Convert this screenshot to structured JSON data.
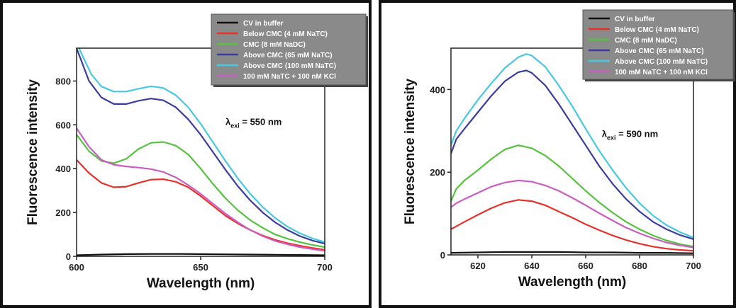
{
  "chart_data": [
    {
      "type": "line",
      "title": "",
      "xlabel": "Wavelength (nm)",
      "ylabel": "Fluorescence intensity",
      "xlim": [
        600,
        700
      ],
      "ylim": [
        0,
        950
      ],
      "xticks": [
        600,
        650,
        700
      ],
      "yticks": [
        0,
        200,
        400,
        600,
        800
      ],
      "grid": false,
      "legend_position": "top-right",
      "annotation": {
        "prefix": "λ",
        "sub": "exi",
        "suffix": " = 550 nm",
        "x": 660,
        "y": 600
      },
      "series": [
        {
          "name": "CV in buffer",
          "color": "#111111",
          "points": [
            [
              600,
              5
            ],
            [
              610,
              8
            ],
            [
              620,
              10
            ],
            [
              630,
              11
            ],
            [
              640,
              11
            ],
            [
              650,
              10
            ],
            [
              660,
              9
            ],
            [
              670,
              8
            ],
            [
              680,
              7
            ],
            [
              690,
              6
            ],
            [
              700,
              5
            ]
          ]
        },
        {
          "name": "Below CMC (4 mM NaTC)",
          "color": "#e8302a",
          "points": [
            [
              600,
              440
            ],
            [
              605,
              380
            ],
            [
              610,
              335
            ],
            [
              615,
              315
            ],
            [
              620,
              318
            ],
            [
              625,
              335
            ],
            [
              630,
              350
            ],
            [
              635,
              352
            ],
            [
              640,
              340
            ],
            [
              645,
              315
            ],
            [
              650,
              275
            ],
            [
              655,
              230
            ],
            [
              660,
              185
            ],
            [
              665,
              150
            ],
            [
              670,
              120
            ],
            [
              675,
              95
            ],
            [
              680,
              75
            ],
            [
              685,
              60
            ],
            [
              690,
              48
            ],
            [
              695,
              38
            ],
            [
              700,
              30
            ]
          ]
        },
        {
          "name": "CMC (8 mM NaDC)",
          "color": "#55c23d",
          "points": [
            [
              600,
              555
            ],
            [
              605,
              480
            ],
            [
              610,
              435
            ],
            [
              615,
              425
            ],
            [
              620,
              445
            ],
            [
              625,
              490
            ],
            [
              630,
              518
            ],
            [
              635,
              522
            ],
            [
              640,
              505
            ],
            [
              645,
              465
            ],
            [
              650,
              400
            ],
            [
              655,
              330
            ],
            [
              660,
              265
            ],
            [
              665,
              210
            ],
            [
              670,
              165
            ],
            [
              675,
              130
            ],
            [
              680,
              100
            ],
            [
              685,
              80
            ],
            [
              690,
              65
            ],
            [
              695,
              52
            ],
            [
              700,
              42
            ]
          ]
        },
        {
          "name": "Above CMC (65 mM NaTC)",
          "color": "#3c3c9e",
          "points": [
            [
              600,
              950
            ],
            [
              605,
              800
            ],
            [
              610,
              725
            ],
            [
              615,
              695
            ],
            [
              620,
              695
            ],
            [
              625,
              710
            ],
            [
              630,
              720
            ],
            [
              635,
              712
            ],
            [
              640,
              680
            ],
            [
              645,
              625
            ],
            [
              650,
              555
            ],
            [
              655,
              475
            ],
            [
              660,
              395
            ],
            [
              665,
              320
            ],
            [
              670,
              255
            ],
            [
              675,
              200
            ],
            [
              680,
              155
            ],
            [
              685,
              120
            ],
            [
              690,
              92
            ],
            [
              695,
              72
            ],
            [
              700,
              58
            ]
          ]
        },
        {
          "name": "Above CMC (100 mM NaTC)",
          "color": "#46c8e0",
          "points": [
            [
              601,
              950
            ],
            [
              603,
              900
            ],
            [
              606,
              830
            ],
            [
              610,
              775
            ],
            [
              615,
              752
            ],
            [
              620,
              752
            ],
            [
              625,
              765
            ],
            [
              630,
              776
            ],
            [
              635,
              768
            ],
            [
              640,
              735
            ],
            [
              645,
              680
            ],
            [
              650,
              605
            ],
            [
              655,
              520
            ],
            [
              660,
              435
            ],
            [
              665,
              355
            ],
            [
              670,
              285
            ],
            [
              675,
              225
            ],
            [
              680,
              175
            ],
            [
              685,
              135
            ],
            [
              690,
              105
            ],
            [
              695,
              82
            ],
            [
              700,
              65
            ]
          ]
        },
        {
          "name": "100 mM NaTC + 100 nM KCl",
          "color": "#c85fc0",
          "points": [
            [
              600,
              585
            ],
            [
              605,
              500
            ],
            [
              610,
              440
            ],
            [
              615,
              418
            ],
            [
              620,
              410
            ],
            [
              625,
              405
            ],
            [
              630,
              398
            ],
            [
              635,
              385
            ],
            [
              640,
              360
            ],
            [
              645,
              325
            ],
            [
              650,
              285
            ],
            [
              655,
              240
            ],
            [
              660,
              195
            ],
            [
              665,
              155
            ],
            [
              670,
              120
            ],
            [
              675,
              92
            ],
            [
              680,
              70
            ],
            [
              685,
              55
            ],
            [
              690,
              42
            ],
            [
              695,
              33
            ],
            [
              700,
              25
            ]
          ]
        }
      ]
    },
    {
      "type": "line",
      "title": "",
      "xlabel": "Wavelength (nm)",
      "ylabel": "Fluorescence intensity",
      "xlim": [
        610,
        700
      ],
      "ylim": [
        0,
        500
      ],
      "xticks": [
        620,
        640,
        660,
        680,
        700
      ],
      "yticks": [
        0,
        200,
        400
      ],
      "grid": false,
      "legend_position": "top-right",
      "annotation": {
        "prefix": "λ",
        "sub": "exi",
        "suffix": " = 590 nm",
        "x": 666,
        "y": 285
      },
      "series": [
        {
          "name": "CV in buffer",
          "color": "#111111",
          "points": [
            [
              610,
              5
            ],
            [
              620,
              6
            ],
            [
              630,
              7
            ],
            [
              640,
              7
            ],
            [
              650,
              7
            ],
            [
              660,
              6
            ],
            [
              670,
              6
            ],
            [
              680,
              5
            ],
            [
              690,
              5
            ],
            [
              700,
              4
            ]
          ]
        },
        {
          "name": "Below CMC (4 mM NaTC)",
          "color": "#e8302a",
          "points": [
            [
              610,
              62
            ],
            [
              615,
              80
            ],
            [
              620,
              97
            ],
            [
              625,
              113
            ],
            [
              630,
              126
            ],
            [
              635,
              133
            ],
            [
              640,
              130
            ],
            [
              645,
              120
            ],
            [
              650,
              105
            ],
            [
              655,
              90
            ],
            [
              660,
              74
            ],
            [
              665,
              60
            ],
            [
              670,
              47
            ],
            [
              675,
              36
            ],
            [
              680,
              27
            ],
            [
              685,
              20
            ],
            [
              690,
              15
            ],
            [
              695,
              12
            ],
            [
              700,
              10
            ]
          ]
        },
        {
          "name": "CMC (8 mM NaDC)",
          "color": "#55c23d",
          "points": [
            [
              610,
              130
            ],
            [
              612,
              160
            ],
            [
              615,
              180
            ],
            [
              620,
              205
            ],
            [
              625,
              232
            ],
            [
              630,
              255
            ],
            [
              635,
              265
            ],
            [
              640,
              258
            ],
            [
              645,
              240
            ],
            [
              650,
              215
            ],
            [
              655,
              185
            ],
            [
              660,
              155
            ],
            [
              665,
              127
            ],
            [
              670,
              102
            ],
            [
              675,
              80
            ],
            [
              680,
              62
            ],
            [
              685,
              47
            ],
            [
              690,
              35
            ],
            [
              695,
              26
            ],
            [
              700,
              20
            ]
          ]
        },
        {
          "name": "Above CMC (65 mM NaTC)",
          "color": "#3c3c9e",
          "points": [
            [
              610,
              245
            ],
            [
              612,
              280
            ],
            [
              615,
              305
            ],
            [
              620,
              345
            ],
            [
              625,
              385
            ],
            [
              630,
              420
            ],
            [
              635,
              442
            ],
            [
              638,
              446
            ],
            [
              640,
              440
            ],
            [
              645,
              410
            ],
            [
              650,
              365
            ],
            [
              655,
              315
            ],
            [
              660,
              265
            ],
            [
              665,
              215
            ],
            [
              670,
              172
            ],
            [
              675,
              135
            ],
            [
              680,
              105
            ],
            [
              685,
              80
            ],
            [
              690,
              62
            ],
            [
              695,
              48
            ],
            [
              700,
              38
            ]
          ]
        },
        {
          "name": "Above CMC (100 mM NaTC)",
          "color": "#46c8e0",
          "points": [
            [
              610,
              265
            ],
            [
              612,
              300
            ],
            [
              615,
              330
            ],
            [
              620,
              375
            ],
            [
              625,
              415
            ],
            [
              630,
              452
            ],
            [
              635,
              478
            ],
            [
              638,
              486
            ],
            [
              640,
              482
            ],
            [
              645,
              455
            ],
            [
              650,
              410
            ],
            [
              655,
              360
            ],
            [
              660,
              305
            ],
            [
              665,
              252
            ],
            [
              670,
              205
            ],
            [
              675,
              162
            ],
            [
              680,
              125
            ],
            [
              685,
              95
            ],
            [
              690,
              72
            ],
            [
              695,
              55
            ],
            [
              700,
              42
            ]
          ]
        },
        {
          "name": "100 mM NaTC + 100 nM KCl",
          "color": "#c85fc0",
          "points": [
            [
              610,
              115
            ],
            [
              612,
              125
            ],
            [
              615,
              135
            ],
            [
              620,
              150
            ],
            [
              625,
              165
            ],
            [
              630,
              175
            ],
            [
              635,
              180
            ],
            [
              640,
              177
            ],
            [
              645,
              168
            ],
            [
              650,
              155
            ],
            [
              655,
              138
            ],
            [
              660,
              120
            ],
            [
              665,
              101
            ],
            [
              670,
              83
            ],
            [
              675,
              66
            ],
            [
              680,
              52
            ],
            [
              685,
              40
            ],
            [
              690,
              30
            ],
            [
              695,
              23
            ],
            [
              700,
              18
            ]
          ]
        }
      ]
    }
  ]
}
